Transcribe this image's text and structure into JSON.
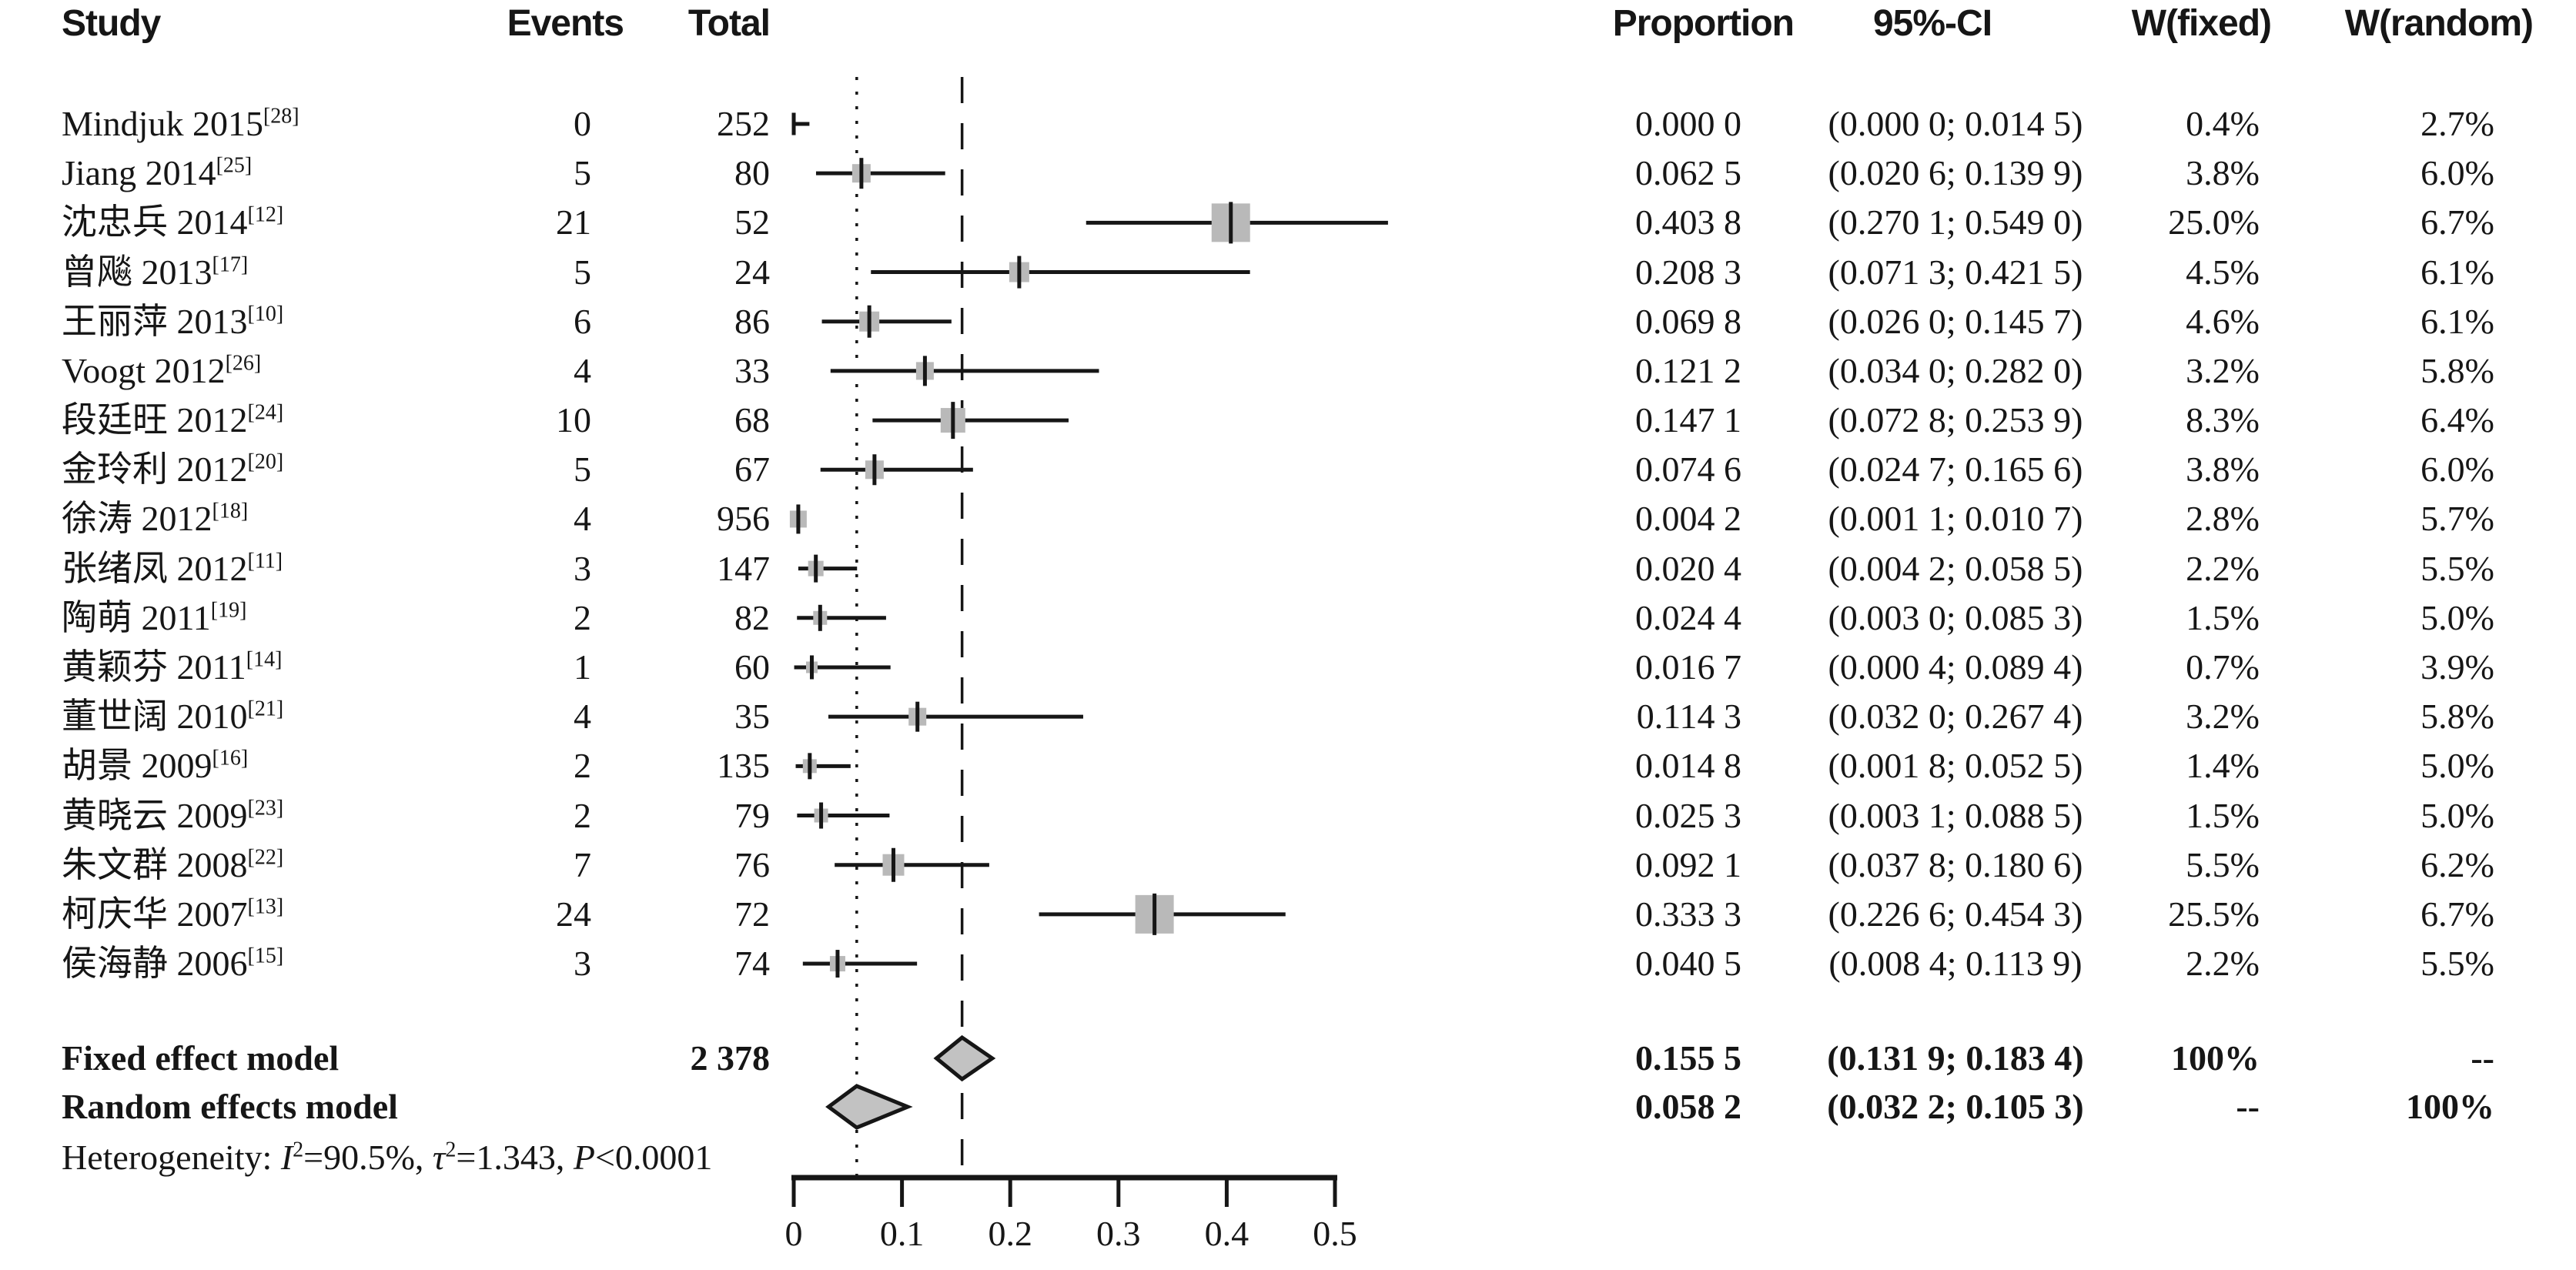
{
  "header": {
    "study": "Study",
    "events": "Events",
    "total": "Total",
    "proportion": "Proportion",
    "ci": "95%-CI",
    "w_fixed": "W(fixed)",
    "w_random": "W(random)"
  },
  "rows": [
    {
      "study": "Mindjuk 2015",
      "ref": "[28]",
      "events": "0",
      "total": "252",
      "proportion": "0.000 0",
      "ci": "(0.000 0; 0.014 5)",
      "w_fixed": "0.4%",
      "w_random": "2.7%"
    },
    {
      "study": "Jiang 2014",
      "ref": "[25]",
      "events": "5",
      "total": "80",
      "proportion": "0.062 5",
      "ci": "(0.020 6; 0.139 9)",
      "w_fixed": "3.8%",
      "w_random": "6.0%"
    },
    {
      "study": "沈忠兵 2014",
      "ref": "[12]",
      "events": "21",
      "total": "52",
      "proportion": "0.403 8",
      "ci": "(0.270 1; 0.549 0)",
      "w_fixed": "25.0%",
      "w_random": "6.7%"
    },
    {
      "study": "曾飚 2013",
      "ref": "[17]",
      "events": "5",
      "total": "24",
      "proportion": "0.208 3",
      "ci": "(0.071 3; 0.421 5)",
      "w_fixed": "4.5%",
      "w_random": "6.1%"
    },
    {
      "study": "王丽萍 2013",
      "ref": "[10]",
      "events": "6",
      "total": "86",
      "proportion": "0.069 8",
      "ci": "(0.026 0; 0.145 7)",
      "w_fixed": "4.6%",
      "w_random": "6.1%"
    },
    {
      "study": "Voogt 2012",
      "ref": "[26]",
      "events": "4",
      "total": "33",
      "proportion": "0.121 2",
      "ci": "(0.034 0; 0.282 0)",
      "w_fixed": "3.2%",
      "w_random": "5.8%"
    },
    {
      "study": "段廷旺 2012",
      "ref": "[24]",
      "events": "10",
      "total": "68",
      "proportion": "0.147 1",
      "ci": "(0.072 8; 0.253 9)",
      "w_fixed": "8.3%",
      "w_random": "6.4%"
    },
    {
      "study": "金玲利 2012",
      "ref": "[20]",
      "events": "5",
      "total": "67",
      "proportion": "0.074 6",
      "ci": "(0.024 7; 0.165 6)",
      "w_fixed": "3.8%",
      "w_random": "6.0%"
    },
    {
      "study": "徐涛 2012",
      "ref": "[18]",
      "events": "4",
      "total": "956",
      "proportion": "0.004 2",
      "ci": "(0.001 1; 0.010 7)",
      "w_fixed": "2.8%",
      "w_random": "5.7%"
    },
    {
      "study": "张绪凤 2012",
      "ref": "[11]",
      "events": "3",
      "total": "147",
      "proportion": "0.020 4",
      "ci": "(0.004 2; 0.058 5)",
      "w_fixed": "2.2%",
      "w_random": "5.5%"
    },
    {
      "study": "陶萌 2011",
      "ref": "[19]",
      "events": "2",
      "total": "82",
      "proportion": "0.024 4",
      "ci": "(0.003 0; 0.085 3)",
      "w_fixed": "1.5%",
      "w_random": "5.0%"
    },
    {
      "study": "黄颖芬 2011",
      "ref": "[14]",
      "events": "1",
      "total": "60",
      "proportion": "0.016 7",
      "ci": "(0.000 4; 0.089 4)",
      "w_fixed": "0.7%",
      "w_random": "3.9%"
    },
    {
      "study": "董世阔 2010",
      "ref": "[21]",
      "events": "4",
      "total": "35",
      "proportion": "0.114 3",
      "ci": "(0.032 0; 0.267 4)",
      "w_fixed": "3.2%",
      "w_random": "5.8%"
    },
    {
      "study": "胡景 2009",
      "ref": "[16]",
      "events": "2",
      "total": "135",
      "proportion": "0.014 8",
      "ci": "(0.001 8; 0.052 5)",
      "w_fixed": "1.4%",
      "w_random": "5.0%"
    },
    {
      "study": "黄晓云 2009",
      "ref": "[23]",
      "events": "2",
      "total": "79",
      "proportion": "0.025 3",
      "ci": "(0.003 1; 0.088 5)",
      "w_fixed": "1.5%",
      "w_random": "5.0%"
    },
    {
      "study": "朱文群 2008",
      "ref": "[22]",
      "events": "7",
      "total": "76",
      "proportion": "0.092 1",
      "ci": "(0.037 8; 0.180 6)",
      "w_fixed": "5.5%",
      "w_random": "6.2%"
    },
    {
      "study": "柯庆华 2007",
      "ref": "[13]",
      "events": "24",
      "total": "72",
      "proportion": "0.333 3",
      "ci": "(0.226 6; 0.454 3)",
      "w_fixed": "25.5%",
      "w_random": "6.7%"
    },
    {
      "study": "侯海静 2006",
      "ref": "[15]",
      "events": "3",
      "total": "74",
      "proportion": "0.040 5",
      "ci": "(0.008 4; 0.113 9)",
      "w_fixed": "2.2%",
      "w_random": "5.5%"
    }
  ],
  "summary": [
    {
      "kind": "fixed",
      "label": "Fixed effect model",
      "total": "2 378",
      "proportion": "0.155 5",
      "ci": "(0.131 9; 0.183 4)",
      "w_fixed": "100%",
      "w_random": "--"
    },
    {
      "kind": "random",
      "label": "Random effects model",
      "total": "",
      "proportion": "0.058 2",
      "ci": "(0.032 2; 0.105 3)",
      "w_fixed": "--",
      "w_random": "100%"
    }
  ],
  "heterogeneity": {
    "prefix": "Heterogeneity: ",
    "terms": [
      {
        "var": "I",
        "sup": "2",
        "rest": "=90.5%, "
      },
      {
        "var": "τ",
        "sup": "2",
        "rest": "=1.343, "
      },
      {
        "var": "P",
        "sup": "",
        "rest": "<0.0001"
      }
    ]
  },
  "chart_data": {
    "type": "forest",
    "title": "",
    "xlabel": "",
    "xlim": [
      0,
      0.5
    ],
    "x_ticks": [
      0,
      0.1,
      0.2,
      0.3,
      0.4,
      0.5
    ],
    "x_tick_labels": [
      "0",
      "0.1",
      "0.2",
      "0.3",
      "0.4",
      "0.5"
    ],
    "grid": false,
    "reference_lines": [
      {
        "value": 0.1555,
        "style": "dashed",
        "meaning": "fixed-effect pooled estimate"
      },
      {
        "value": 0.0582,
        "style": "dotted",
        "meaning": "random-effects pooled estimate"
      }
    ],
    "studies": [
      {
        "label": "Mindjuk 2015",
        "est": 0.0,
        "lo": 0.0,
        "hi": 0.0145,
        "w_fixed": 0.4,
        "w_random": 2.7
      },
      {
        "label": "Jiang 2014",
        "est": 0.0625,
        "lo": 0.0206,
        "hi": 0.1399,
        "w_fixed": 3.8,
        "w_random": 6.0
      },
      {
        "label": "沈忠兵 2014",
        "est": 0.4038,
        "lo": 0.2701,
        "hi": 0.549,
        "w_fixed": 25.0,
        "w_random": 6.7
      },
      {
        "label": "曾飚 2013",
        "est": 0.2083,
        "lo": 0.0713,
        "hi": 0.4215,
        "w_fixed": 4.5,
        "w_random": 6.1
      },
      {
        "label": "王丽萍 2013",
        "est": 0.0698,
        "lo": 0.026,
        "hi": 0.1457,
        "w_fixed": 4.6,
        "w_random": 6.1
      },
      {
        "label": "Voogt 2012",
        "est": 0.1212,
        "lo": 0.034,
        "hi": 0.282,
        "w_fixed": 3.2,
        "w_random": 5.8
      },
      {
        "label": "段廷旺 2012",
        "est": 0.1471,
        "lo": 0.0728,
        "hi": 0.2539,
        "w_fixed": 8.3,
        "w_random": 6.4
      },
      {
        "label": "金玲利 2012",
        "est": 0.0746,
        "lo": 0.0247,
        "hi": 0.1656,
        "w_fixed": 3.8,
        "w_random": 6.0
      },
      {
        "label": "徐涛 2012",
        "est": 0.0042,
        "lo": 0.0011,
        "hi": 0.0107,
        "w_fixed": 2.8,
        "w_random": 5.7
      },
      {
        "label": "张绪凤 2012",
        "est": 0.0204,
        "lo": 0.0042,
        "hi": 0.0585,
        "w_fixed": 2.2,
        "w_random": 5.5
      },
      {
        "label": "陶萌 2011",
        "est": 0.0244,
        "lo": 0.003,
        "hi": 0.0853,
        "w_fixed": 1.5,
        "w_random": 5.0
      },
      {
        "label": "黄颖芬 2011",
        "est": 0.0167,
        "lo": 0.0004,
        "hi": 0.0894,
        "w_fixed": 0.7,
        "w_random": 3.9
      },
      {
        "label": "董世阔 2010",
        "est": 0.1143,
        "lo": 0.032,
        "hi": 0.2674,
        "w_fixed": 3.2,
        "w_random": 5.8
      },
      {
        "label": "胡景 2009",
        "est": 0.0148,
        "lo": 0.0018,
        "hi": 0.0525,
        "w_fixed": 1.4,
        "w_random": 5.0
      },
      {
        "label": "黄晓云 2009",
        "est": 0.0253,
        "lo": 0.0031,
        "hi": 0.0885,
        "w_fixed": 1.5,
        "w_random": 5.0
      },
      {
        "label": "朱文群 2008",
        "est": 0.0921,
        "lo": 0.0378,
        "hi": 0.1806,
        "w_fixed": 5.5,
        "w_random": 6.2
      },
      {
        "label": "柯庆华 2007",
        "est": 0.3333,
        "lo": 0.2266,
        "hi": 0.4543,
        "w_fixed": 25.5,
        "w_random": 6.7
      },
      {
        "label": "侯海静 2006",
        "est": 0.0405,
        "lo": 0.0084,
        "hi": 0.1139,
        "w_fixed": 2.2,
        "w_random": 5.5
      }
    ],
    "summaries": [
      {
        "label": "Fixed effect model",
        "est": 0.1555,
        "lo": 0.1319,
        "hi": 0.1834
      },
      {
        "label": "Random effects model",
        "est": 0.0582,
        "lo": 0.0322,
        "hi": 0.1053
      }
    ],
    "heterogeneity_text": "Heterogeneity: I2=90.5%, tau2=1.343, P<0.0001",
    "marker_color": "#b9b9b9",
    "diamond_color": "#c2c2c2",
    "line_color": "#161616"
  }
}
